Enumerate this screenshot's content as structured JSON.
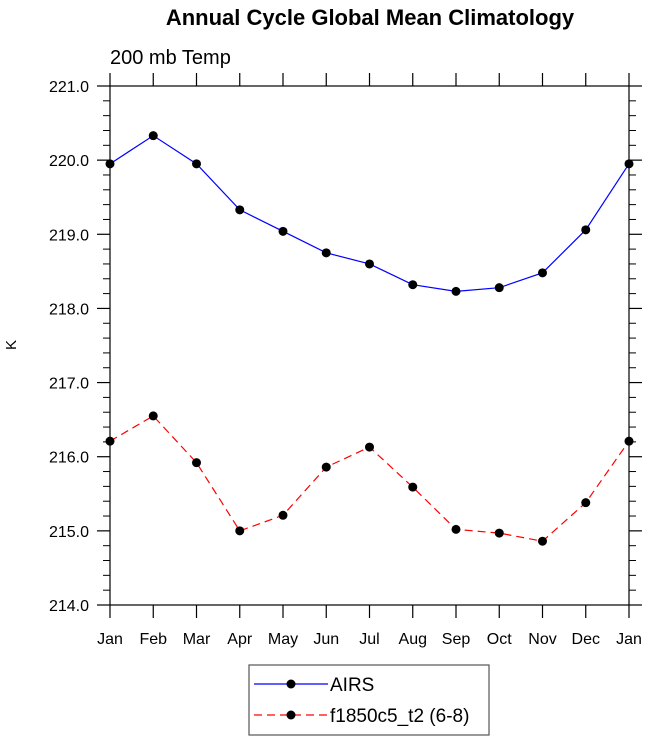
{
  "chart_data": {
    "type": "line",
    "title": "Annual Cycle Global Mean Climatology",
    "subtitle": "200 mb Temp",
    "xlabel": "",
    "ylabel": "K",
    "ylim": [
      214.0,
      221.0
    ],
    "yticks": [
      "214.0",
      "215.0",
      "216.0",
      "217.0",
      "218.0",
      "219.0",
      "220.0",
      "221.0"
    ],
    "categories": [
      "Jan",
      "Feb",
      "Mar",
      "Apr",
      "May",
      "Jun",
      "Jul",
      "Aug",
      "Sep",
      "Oct",
      "Nov",
      "Dec",
      "Jan"
    ],
    "grid": false,
    "legend_position": "bottom-center",
    "series": [
      {
        "name": "AIRS",
        "color": "#0000ff",
        "dash": "solid",
        "values": [
          219.95,
          220.33,
          219.95,
          219.33,
          219.04,
          218.75,
          218.6,
          218.32,
          218.23,
          218.28,
          218.48,
          219.06,
          219.95
        ]
      },
      {
        "name": "f1850c5_t2 (6-8)",
        "color": "#ff0000",
        "dash": "dashed",
        "values": [
          216.21,
          216.55,
          215.92,
          215.0,
          215.21,
          215.86,
          216.13,
          215.59,
          215.02,
          214.97,
          214.86,
          215.38,
          216.21
        ]
      }
    ]
  }
}
